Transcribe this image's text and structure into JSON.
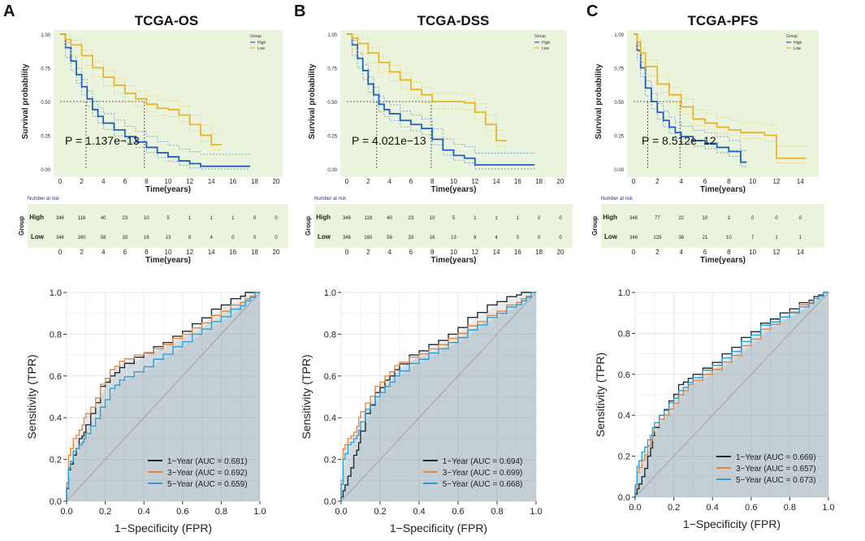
{
  "chart_data": [
    {
      "type": "line",
      "panel_label": "A",
      "title": "TCGA-OS",
      "xlabel": "Time(years)",
      "ylabel": "Survival probability",
      "xlim": [
        0,
        20
      ],
      "ylim": [
        0,
        1
      ],
      "x_ticks": [
        "0",
        "2",
        "4",
        "6",
        "8",
        "10",
        "12",
        "14",
        "16",
        "18",
        "20"
      ],
      "y_ticks": [
        "0.00",
        "0.25",
        "0.50",
        "0.75",
        "1.00"
      ],
      "legend_title": "Group",
      "p_value": "P = 1.137e−13",
      "median_survival": [
        2.4,
        7.8
      ],
      "series": [
        {
          "name": "High",
          "color": "#1f5fbf",
          "x": [
            0,
            0.5,
            1,
            1.5,
            2,
            2.5,
            3,
            3.5,
            4,
            5,
            6,
            7,
            8,
            9,
            10,
            11,
            12,
            13,
            15,
            17.6
          ],
          "y": [
            1,
            0.9,
            0.8,
            0.7,
            0.61,
            0.52,
            0.44,
            0.39,
            0.34,
            0.29,
            0.24,
            0.2,
            0.16,
            0.12,
            0.09,
            0.06,
            0.04,
            0.02,
            0.02,
            0.02
          ]
        },
        {
          "name": "Low",
          "color": "#e9b32a",
          "x": [
            0,
            0.5,
            1,
            2,
            3,
            4,
            5,
            6,
            7,
            8,
            9,
            10,
            11,
            12,
            13,
            14,
            15
          ],
          "y": [
            1,
            0.96,
            0.92,
            0.84,
            0.75,
            0.68,
            0.62,
            0.56,
            0.52,
            0.48,
            0.45,
            0.44,
            0.4,
            0.33,
            0.25,
            0.18,
            0.18
          ]
        }
      ],
      "risk_table": {
        "title": "Number at risk",
        "group_label": "Group",
        "rows": [
          {
            "name": "High",
            "values": [
              "346",
              "118",
              "40",
              "23",
              "10",
              "5",
              "1",
              "1",
              "1",
              "0",
              "0"
            ]
          },
          {
            "name": "Low",
            "values": [
              "346",
              "160",
              "58",
              "33",
              "16",
              "13",
              "8",
              "4",
              "0",
              "0",
              "0"
            ]
          }
        ],
        "x_ticks": [
          "0",
          "2",
          "4",
          "6",
          "8",
          "10",
          "12",
          "14",
          "16",
          "18",
          "20"
        ],
        "xlabel": "Time(years)"
      }
    },
    {
      "type": "line",
      "panel_label": "B",
      "title": "TCGA-DSS",
      "xlabel": "Time(years)",
      "ylabel": "Survival probability",
      "xlim": [
        0,
        20
      ],
      "ylim": [
        0,
        1
      ],
      "x_ticks": [
        "0",
        "2",
        "4",
        "6",
        "8",
        "10",
        "12",
        "14",
        "16",
        "18",
        "20"
      ],
      "y_ticks": [
        "0.00",
        "0.25",
        "0.50",
        "0.75",
        "1.00"
      ],
      "legend_title": "Group",
      "p_value": "P = 4.021e−13",
      "median_survival": [
        2.8,
        7.9
      ],
      "series": [
        {
          "name": "High",
          "color": "#1f5fbf",
          "x": [
            0,
            0.5,
            1,
            1.5,
            2,
            2.5,
            3,
            3.5,
            4,
            5,
            6,
            7,
            8,
            9,
            10,
            11,
            12,
            14,
            17.6
          ],
          "y": [
            1,
            0.92,
            0.82,
            0.73,
            0.63,
            0.55,
            0.48,
            0.44,
            0.41,
            0.36,
            0.33,
            0.3,
            0.22,
            0.14,
            0.1,
            0.08,
            0.03,
            0.03,
            0.03
          ]
        },
        {
          "name": "Low",
          "color": "#e9b32a",
          "x": [
            0,
            0.5,
            1,
            2,
            3,
            4,
            5,
            6,
            7,
            8,
            9,
            10,
            11,
            12,
            13,
            14,
            15
          ],
          "y": [
            1,
            0.97,
            0.93,
            0.86,
            0.79,
            0.72,
            0.66,
            0.59,
            0.55,
            0.5,
            0.5,
            0.5,
            0.49,
            0.42,
            0.33,
            0.21,
            0.21
          ]
        }
      ],
      "risk_table": {
        "title": "Number at risk",
        "group_label": "Group",
        "rows": [
          {
            "name": "High",
            "values": [
              "346",
              "118",
              "40",
              "23",
              "10",
              "5",
              "1",
              "1",
              "1",
              "0",
              "0"
            ]
          },
          {
            "name": "Low",
            "values": [
              "346",
              "160",
              "58",
              "33",
              "16",
              "13",
              "8",
              "4",
              "0",
              "0",
              "0"
            ]
          }
        ],
        "x_ticks": [
          "0",
          "2",
          "4",
          "6",
          "8",
          "10",
          "12",
          "14",
          "16",
          "18",
          "20"
        ],
        "xlabel": "Time(years)"
      }
    },
    {
      "type": "line",
      "panel_label": "C",
      "title": "TCGA-PFS",
      "xlabel": "Time(years)",
      "ylabel": "Survival probability",
      "xlim": [
        0,
        15
      ],
      "ylim": [
        0,
        1
      ],
      "x_ticks": [
        "0",
        "2",
        "4",
        "6",
        "8",
        "10",
        "12",
        "14"
      ],
      "y_ticks": [
        "0.00",
        "0.25",
        "0.50",
        "0.75",
        "1.00"
      ],
      "legend_title": "Group",
      "p_value": "P = 8.512e−12",
      "median_survival": [
        1.2,
        3.9
      ],
      "series": [
        {
          "name": "High",
          "color": "#1f5fbf",
          "x": [
            0,
            0.3,
            0.6,
            1,
            1.5,
            2,
            2.5,
            3,
            3.5,
            4,
            5,
            6,
            7,
            8,
            9,
            9.5
          ],
          "y": [
            1,
            0.88,
            0.75,
            0.6,
            0.5,
            0.42,
            0.36,
            0.31,
            0.27,
            0.24,
            0.21,
            0.19,
            0.16,
            0.13,
            0.05,
            0.05
          ]
        },
        {
          "name": "Low",
          "color": "#e9b32a",
          "x": [
            0,
            0.3,
            0.6,
            1,
            2,
            3,
            4,
            5,
            6,
            7,
            8,
            9,
            10,
            11,
            11.8,
            12,
            14.5
          ],
          "y": [
            1,
            0.94,
            0.86,
            0.76,
            0.63,
            0.55,
            0.46,
            0.37,
            0.34,
            0.31,
            0.29,
            0.27,
            0.27,
            0.25,
            0.25,
            0.08,
            0.08
          ]
        }
      ],
      "risk_table": {
        "title": "Number at risk",
        "group_label": "Group",
        "rows": [
          {
            "name": "High",
            "values": [
              "346",
              "77",
              "22",
              "10",
              "3",
              "0",
              "0",
              "0"
            ]
          },
          {
            "name": "Low",
            "values": [
              "346",
              "129",
              "38",
              "21",
              "10",
              "7",
              "1",
              "1"
            ]
          }
        ],
        "x_ticks": [
          "0",
          "2",
          "4",
          "6",
          "8",
          "10",
          "12",
          "14"
        ],
        "xlabel": "Time(years)"
      }
    },
    {
      "type": "line",
      "panel": "A-ROC",
      "xlabel": "1−Specificity (FPR)",
      "ylabel": "Sensitivity (TPR)",
      "xlim": [
        0,
        1
      ],
      "ylim": [
        0,
        1
      ],
      "x_ticks": [
        "0.0",
        "0.2",
        "0.4",
        "0.6",
        "0.8",
        "1.0"
      ],
      "y_ticks": [
        "0.0",
        "0.2",
        "0.4",
        "0.6",
        "0.8",
        "1.0"
      ],
      "series": [
        {
          "name": "1−Year (AUC = 0.681)",
          "color": "#1c2a33",
          "x": [
            0,
            0.02,
            0.05,
            0.08,
            0.1,
            0.15,
            0.2,
            0.25,
            0.3,
            0.4,
            0.5,
            0.6,
            0.7,
            0.8,
            0.9,
            0.95,
            1
          ],
          "y": [
            0,
            0.15,
            0.22,
            0.3,
            0.33,
            0.42,
            0.55,
            0.6,
            0.64,
            0.69,
            0.74,
            0.79,
            0.85,
            0.92,
            0.97,
            1,
            1
          ]
        },
        {
          "name": "3−Year (AUC = 0.692)",
          "color": "#e8853a",
          "x": [
            0,
            0.02,
            0.05,
            0.08,
            0.1,
            0.15,
            0.2,
            0.25,
            0.3,
            0.4,
            0.5,
            0.6,
            0.7,
            0.8,
            0.9,
            0.95,
            1
          ],
          "y": [
            0,
            0.22,
            0.3,
            0.34,
            0.4,
            0.45,
            0.56,
            0.63,
            0.67,
            0.7,
            0.73,
            0.78,
            0.83,
            0.89,
            0.94,
            0.97,
            1
          ]
        },
        {
          "name": "5−Year (AUC = 0.659)",
          "color": "#2a9ed8",
          "x": [
            0,
            0.02,
            0.05,
            0.08,
            0.1,
            0.15,
            0.2,
            0.25,
            0.3,
            0.4,
            0.5,
            0.6,
            0.7,
            0.8,
            0.9,
            0.95,
            1
          ],
          "y": [
            0,
            0.16,
            0.24,
            0.27,
            0.3,
            0.36,
            0.45,
            0.54,
            0.58,
            0.62,
            0.68,
            0.74,
            0.8,
            0.86,
            0.92,
            0.96,
            1
          ]
        }
      ]
    },
    {
      "type": "line",
      "panel": "B-ROC",
      "xlabel": "1−Specificity (FPR)",
      "ylabel": "Sensitivity (TPR)",
      "xlim": [
        0,
        1
      ],
      "ylim": [
        0,
        1
      ],
      "x_ticks": [
        "0.0",
        "0.2",
        "0.4",
        "0.6",
        "0.8",
        "1.0"
      ],
      "y_ticks": [
        "0.0",
        "0.2",
        "0.4",
        "0.6",
        "0.8",
        "1.0"
      ],
      "series": [
        {
          "name": "1−Year (AUC = 0.694)",
          "color": "#1c2a33",
          "x": [
            0,
            0.02,
            0.05,
            0.08,
            0.1,
            0.15,
            0.2,
            0.25,
            0.3,
            0.4,
            0.5,
            0.6,
            0.7,
            0.8,
            0.9,
            0.95,
            1
          ],
          "y": [
            0,
            0.05,
            0.12,
            0.22,
            0.28,
            0.42,
            0.52,
            0.58,
            0.63,
            0.7,
            0.75,
            0.8,
            0.88,
            0.94,
            0.98,
            1,
            1
          ]
        },
        {
          "name": "3−Year (AUC = 0.699)",
          "color": "#e8853a",
          "x": [
            0,
            0.02,
            0.05,
            0.08,
            0.1,
            0.15,
            0.2,
            0.25,
            0.3,
            0.4,
            0.5,
            0.6,
            0.7,
            0.8,
            0.9,
            0.95,
            1
          ],
          "y": [
            0,
            0.25,
            0.3,
            0.33,
            0.4,
            0.47,
            0.55,
            0.6,
            0.65,
            0.69,
            0.73,
            0.78,
            0.84,
            0.89,
            0.94,
            0.97,
            1
          ]
        },
        {
          "name": "5−Year (AUC = 0.668)",
          "color": "#2a9ed8",
          "x": [
            0,
            0.02,
            0.05,
            0.08,
            0.1,
            0.15,
            0.2,
            0.25,
            0.3,
            0.4,
            0.5,
            0.6,
            0.7,
            0.8,
            0.9,
            0.95,
            1
          ],
          "y": [
            0,
            0.2,
            0.27,
            0.3,
            0.34,
            0.44,
            0.5,
            0.55,
            0.6,
            0.66,
            0.71,
            0.76,
            0.82,
            0.88,
            0.93,
            0.96,
            1
          ]
        }
      ]
    },
    {
      "type": "line",
      "panel": "C-ROC",
      "xlabel": "1−Specificity (FPR)",
      "ylabel": "Sensitivity (TPR)",
      "xlim": [
        0,
        1
      ],
      "ylim": [
        0,
        1
      ],
      "x_ticks": [
        "0.0",
        "0.2",
        "0.4",
        "0.6",
        "0.8",
        "1.0"
      ],
      "y_ticks": [
        "0.0",
        "0.2",
        "0.4",
        "0.6",
        "0.8",
        "1.0"
      ],
      "series": [
        {
          "name": "1−Year (AUC = 0.669)",
          "color": "#1c2a33",
          "x": [
            0,
            0.02,
            0.05,
            0.08,
            0.1,
            0.15,
            0.2,
            0.25,
            0.3,
            0.4,
            0.5,
            0.6,
            0.7,
            0.8,
            0.9,
            0.95,
            1
          ],
          "y": [
            0,
            0.04,
            0.1,
            0.2,
            0.3,
            0.4,
            0.47,
            0.55,
            0.58,
            0.63,
            0.7,
            0.78,
            0.85,
            0.9,
            0.95,
            0.98,
            1
          ]
        },
        {
          "name": "3−Year (AUC = 0.657)",
          "color": "#e8853a",
          "x": [
            0,
            0.02,
            0.05,
            0.08,
            0.1,
            0.15,
            0.2,
            0.25,
            0.3,
            0.4,
            0.5,
            0.6,
            0.7,
            0.8,
            0.9,
            0.95,
            1
          ],
          "y": [
            0,
            0.12,
            0.18,
            0.25,
            0.32,
            0.38,
            0.43,
            0.5,
            0.55,
            0.6,
            0.66,
            0.74,
            0.82,
            0.88,
            0.94,
            0.97,
            1
          ]
        },
        {
          "name": "5−Year (AUC = 0.673)",
          "color": "#2a9ed8",
          "x": [
            0,
            0.02,
            0.05,
            0.08,
            0.1,
            0.15,
            0.2,
            0.25,
            0.3,
            0.4,
            0.5,
            0.6,
            0.7,
            0.8,
            0.9,
            0.95,
            1
          ],
          "y": [
            0,
            0.15,
            0.22,
            0.28,
            0.34,
            0.4,
            0.46,
            0.52,
            0.56,
            0.62,
            0.68,
            0.76,
            0.84,
            0.88,
            0.93,
            0.97,
            1
          ]
        }
      ]
    }
  ]
}
